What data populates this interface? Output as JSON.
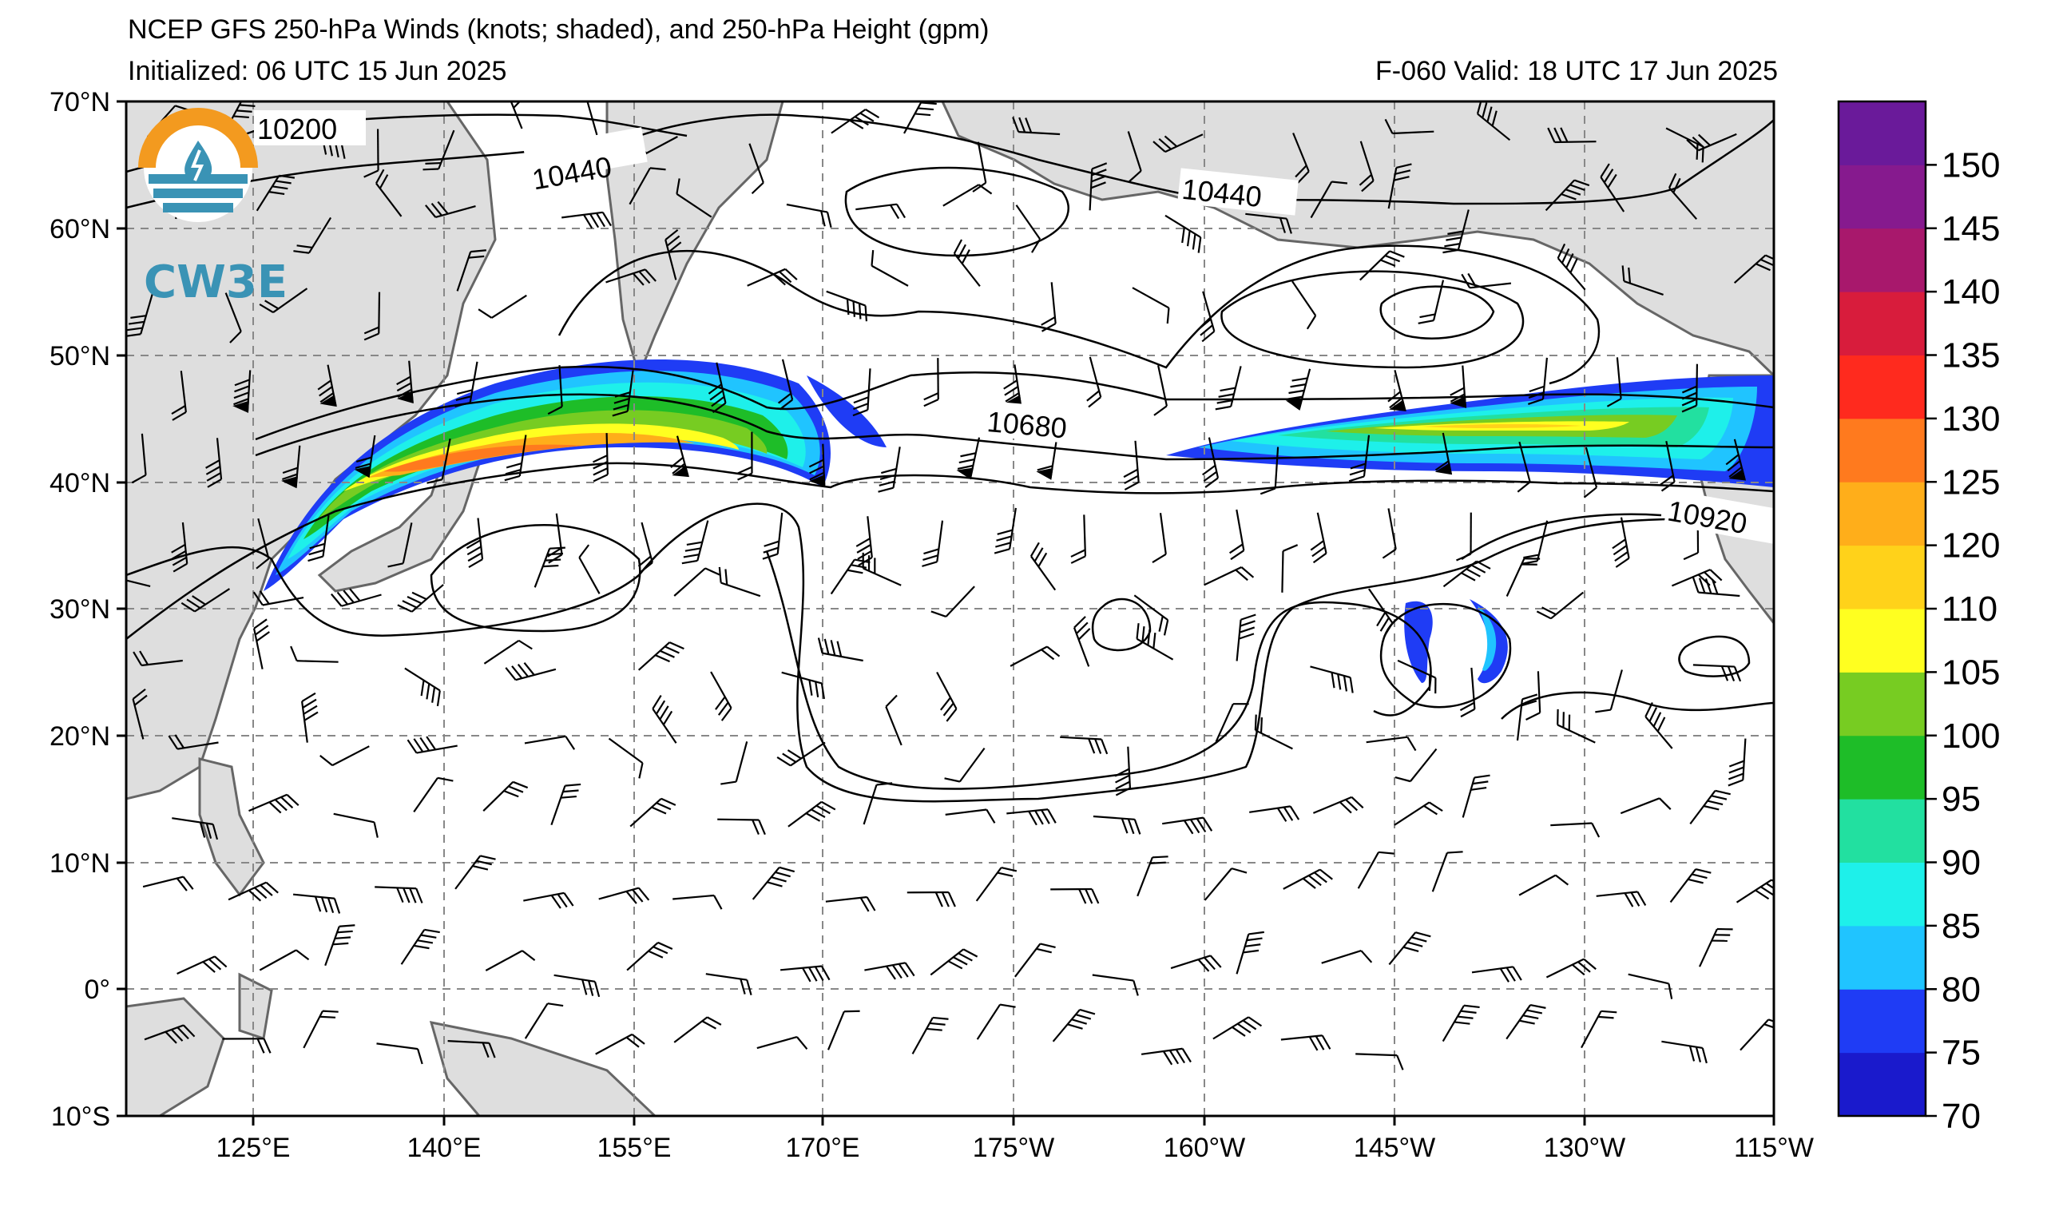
{
  "header": {
    "title": "NCEP GFS 250-hPa Winds (knots; shaded), and 250-hPa Height (gpm)",
    "initialized": "Initialized: 06 UTC 15 Jun 2025",
    "valid": "F-060  Valid: 18 UTC 17 Jun 2025"
  },
  "logo": {
    "text": "CW3E",
    "icon": "cw3e-logo-icon"
  },
  "axes": {
    "lat_labels": [
      "70°N",
      "60°N",
      "50°N",
      "40°N",
      "30°N",
      "20°N",
      "10°N",
      "0°",
      "10°S"
    ],
    "lon_labels": [
      "125°E",
      "140°E",
      "155°E",
      "170°E",
      "175°W",
      "160°W",
      "145°W",
      "130°W",
      "115°W"
    ],
    "lat_range": [
      -10,
      70
    ],
    "lon_range_east_deg": [
      110,
      245
    ],
    "grid": "dashed"
  },
  "contours": {
    "labels": [
      "10200",
      "10440",
      "10440",
      "10680",
      "10920"
    ]
  },
  "colorbar": {
    "ticks": [
      "70",
      "75",
      "80",
      "85",
      "90",
      "95",
      "100",
      "105",
      "110",
      "120",
      "125",
      "130",
      "135",
      "140",
      "145",
      "150"
    ],
    "colors": [
      "#1a1acc",
      "#1f3cf5",
      "#20c4ff",
      "#1ef0ea",
      "#22e0a0",
      "#1ebd28",
      "#77cc22",
      "#ffff20",
      "#ffd21a",
      "#ffae1a",
      "#ff7a1e",
      "#ff2a1e",
      "#d81c3c",
      "#a8186c",
      "#861a8e",
      "#6a1a9a"
    ]
  },
  "colors": {
    "land": "#dedede",
    "coast": "#666666",
    "grid": "#888888"
  }
}
